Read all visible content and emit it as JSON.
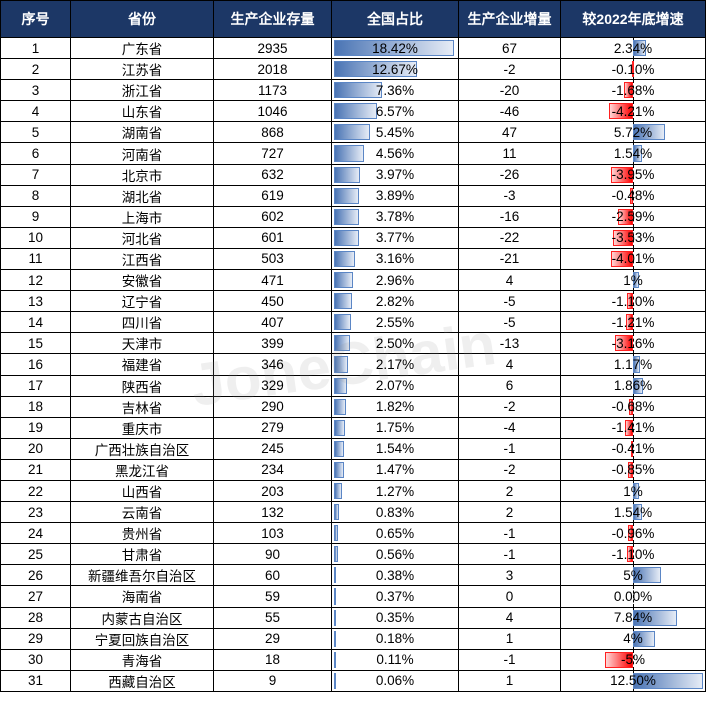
{
  "watermark": "JoneChain",
  "colors": {
    "header": "#1c3766",
    "positive_bar": "#4a74b4",
    "negative_bar": "#ff0000"
  },
  "chart_data": {
    "type": "table",
    "columns": [
      "序号",
      "省份",
      "生产企业存量",
      "全国占比",
      "生产企业增量",
      "较2022年底增速"
    ],
    "rows": [
      [
        "1",
        "广东省",
        "2935",
        "18.42%",
        "67",
        "2.34%"
      ],
      [
        "2",
        "江苏省",
        "2018",
        "12.67%",
        "-2",
        "-0.10%"
      ],
      [
        "3",
        "浙江省",
        "1173",
        "7.36%",
        "-20",
        "-1.68%"
      ],
      [
        "4",
        "山东省",
        "1046",
        "6.57%",
        "-46",
        "-4.21%"
      ],
      [
        "5",
        "湖南省",
        "868",
        "5.45%",
        "47",
        "5.72%"
      ],
      [
        "6",
        "河南省",
        "727",
        "4.56%",
        "11",
        "1.54%"
      ],
      [
        "7",
        "北京市",
        "632",
        "3.97%",
        "-26",
        "-3.95%"
      ],
      [
        "8",
        "湖北省",
        "619",
        "3.89%",
        "-3",
        "-0.48%"
      ],
      [
        "9",
        "上海市",
        "602",
        "3.78%",
        "-16",
        "-2.59%"
      ],
      [
        "10",
        "河北省",
        "601",
        "3.77%",
        "-22",
        "-3.53%"
      ],
      [
        "11",
        "江西省",
        "503",
        "3.16%",
        "-21",
        "-4.01%"
      ],
      [
        "12",
        "安徽省",
        "471",
        "2.96%",
        "4",
        "1%"
      ],
      [
        "13",
        "辽宁省",
        "450",
        "2.82%",
        "-5",
        "-1.10%"
      ],
      [
        "14",
        "四川省",
        "407",
        "2.55%",
        "-5",
        "-1.21%"
      ],
      [
        "15",
        "天津市",
        "399",
        "2.50%",
        "-13",
        "-3.16%"
      ],
      [
        "16",
        "福建省",
        "346",
        "2.17%",
        "4",
        "1.17%"
      ],
      [
        "17",
        "陕西省",
        "329",
        "2.07%",
        "6",
        "1.86%"
      ],
      [
        "18",
        "吉林省",
        "290",
        "1.82%",
        "-2",
        "-0.68%"
      ],
      [
        "19",
        "重庆市",
        "279",
        "1.75%",
        "-4",
        "-1.41%"
      ],
      [
        "20",
        "广西壮族自治区",
        "245",
        "1.54%",
        "-1",
        "-0.41%"
      ],
      [
        "21",
        "黑龙江省",
        "234",
        "1.47%",
        "-2",
        "-0.85%"
      ],
      [
        "22",
        "山西省",
        "203",
        "1.27%",
        "2",
        "1%"
      ],
      [
        "23",
        "云南省",
        "132",
        "0.83%",
        "2",
        "1.54%"
      ],
      [
        "24",
        "贵州省",
        "103",
        "0.65%",
        "-1",
        "-0.96%"
      ],
      [
        "25",
        "甘肃省",
        "90",
        "0.56%",
        "-1",
        "-1.10%"
      ],
      [
        "26",
        "新疆维吾尔自治区",
        "60",
        "0.38%",
        "3",
        "5%"
      ],
      [
        "27",
        "海南省",
        "59",
        "0.37%",
        "0",
        "0.00%"
      ],
      [
        "28",
        "内蒙古自治区",
        "55",
        "0.35%",
        "4",
        "7.84%"
      ],
      [
        "29",
        "宁夏回族自治区",
        "29",
        "0.18%",
        "1",
        "4%"
      ],
      [
        "30",
        "青海省",
        "18",
        "0.11%",
        "-1",
        "-5%"
      ],
      [
        "31",
        "西藏自治区",
        "9",
        "0.06%",
        "1",
        "12.50%"
      ]
    ]
  }
}
